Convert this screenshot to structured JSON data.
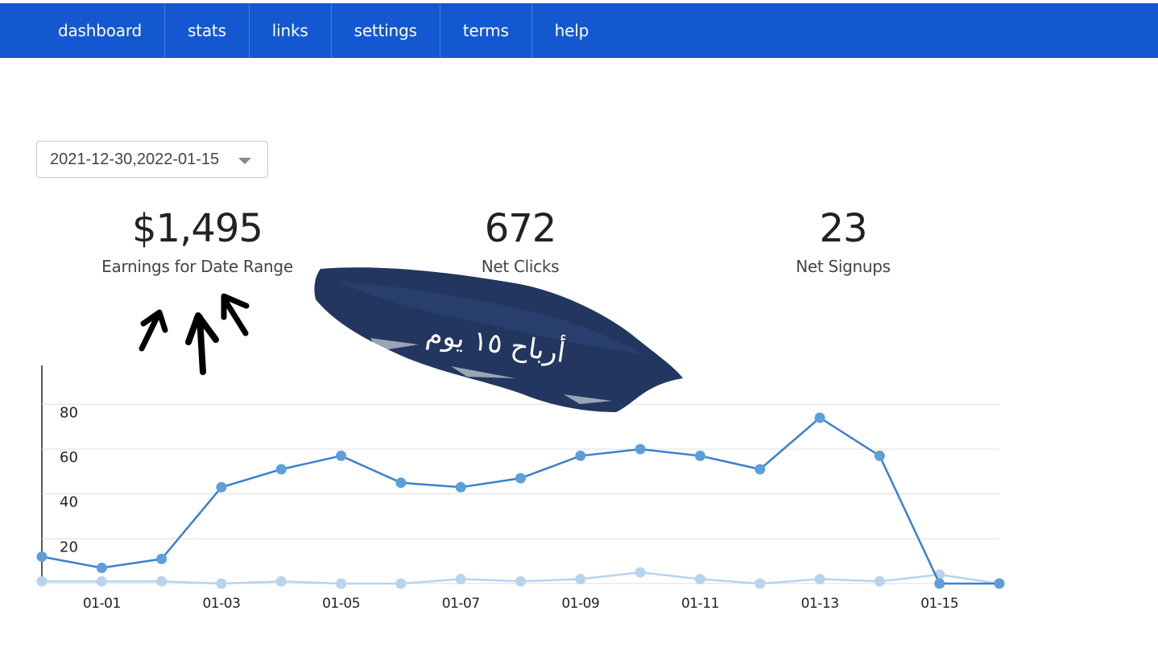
{
  "nav": {
    "items": [
      {
        "label": "dashboard"
      },
      {
        "label": "stats"
      },
      {
        "label": "links"
      },
      {
        "label": "settings"
      },
      {
        "label": "terms"
      },
      {
        "label": "help"
      }
    ]
  },
  "date_range": {
    "value": "2021-12-30,2022-01-15"
  },
  "stats": {
    "earnings": {
      "value": "$1,495",
      "label": "Earnings for Date Range"
    },
    "clicks": {
      "value": "672",
      "label": "Net Clicks"
    },
    "signups": {
      "value": "23",
      "label": "Net Signups"
    }
  },
  "annotation": {
    "text": "أرباح ١٥ يوم",
    "brush_color": "#22365f"
  },
  "colors": {
    "nav_bg": "#1358d1",
    "series_main": "#3a80d0",
    "series_light": "#b7d3ee"
  },
  "chart_data": {
    "type": "line",
    "x": [
      "12-31",
      "01-01",
      "01-02",
      "01-03",
      "01-04",
      "01-05",
      "01-06",
      "01-07",
      "01-08",
      "01-09",
      "01-10",
      "01-11",
      "01-12",
      "01-13",
      "01-14",
      "01-15",
      "01-16"
    ],
    "x_tick_labels": [
      "01-01",
      "01-03",
      "01-05",
      "01-07",
      "01-09",
      "01-11",
      "01-13",
      "01-15"
    ],
    "y_ticks": [
      20,
      40,
      60,
      80
    ],
    "ylim": [
      0,
      88
    ],
    "grid": true,
    "series": [
      {
        "values": [
          12,
          7,
          11,
          43,
          51,
          57,
          45,
          43,
          47,
          57,
          60,
          57,
          51,
          74,
          57,
          0,
          0
        ],
        "color": "#3a80d0"
      },
      {
        "values": [
          1,
          1,
          1,
          0,
          1,
          0,
          0,
          2,
          1,
          2,
          5,
          2,
          0,
          2,
          1,
          4,
          0
        ],
        "color": "#b7d3ee"
      }
    ]
  }
}
